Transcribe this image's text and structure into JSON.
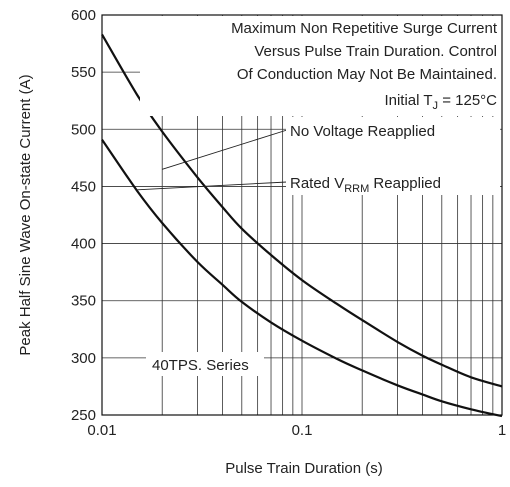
{
  "chart_data": {
    "type": "line",
    "xscale": "log",
    "xlim": [
      0.01,
      1
    ],
    "ylim": [
      250,
      600
    ],
    "x_ticks": [
      "0.01",
      "0.1",
      "1"
    ],
    "y_ticks": [
      "250",
      "300",
      "350",
      "400",
      "450",
      "500",
      "550",
      "600"
    ],
    "xlabel": "Pulse Train Duration (s)",
    "ylabel": "Peak Half Sine Wave On-state Current (A)",
    "grid": true,
    "annotation_lines": [
      "Maximum Non Repetitive Surge Current",
      "Versus Pulse Train Duration. Control",
      "Of Conduction May Not Be Maintained."
    ],
    "condition": {
      "prefix": "Initial T",
      "sub": "J",
      "suffix": " = 125°C"
    },
    "series": [
      {
        "name": "No Voltage Reapplied",
        "x": [
          0.01,
          0.015,
          0.02,
          0.03,
          0.04,
          0.05,
          0.07,
          0.1,
          0.15,
          0.2,
          0.3,
          0.4,
          0.5,
          0.7,
          1.0
        ],
        "y": [
          583,
          530,
          498,
          458,
          432,
          413,
          390,
          368,
          347,
          333,
          314,
          302,
          294,
          283,
          275
        ]
      },
      {
        "name": "Rated VRRM Reapplied",
        "label_parts": {
          "prefix": "Rated V",
          "sub": "RRM",
          "suffix": " Reapplied"
        },
        "x": [
          0.01,
          0.015,
          0.02,
          0.03,
          0.04,
          0.05,
          0.07,
          0.1,
          0.15,
          0.2,
          0.3,
          0.4,
          0.5,
          0.7,
          1.0
        ],
        "y": [
          491,
          446,
          418,
          384,
          364,
          349,
          331,
          315,
          299,
          289,
          276,
          268,
          262,
          255,
          249
        ]
      }
    ],
    "series_label": "40TPS. Series"
  }
}
